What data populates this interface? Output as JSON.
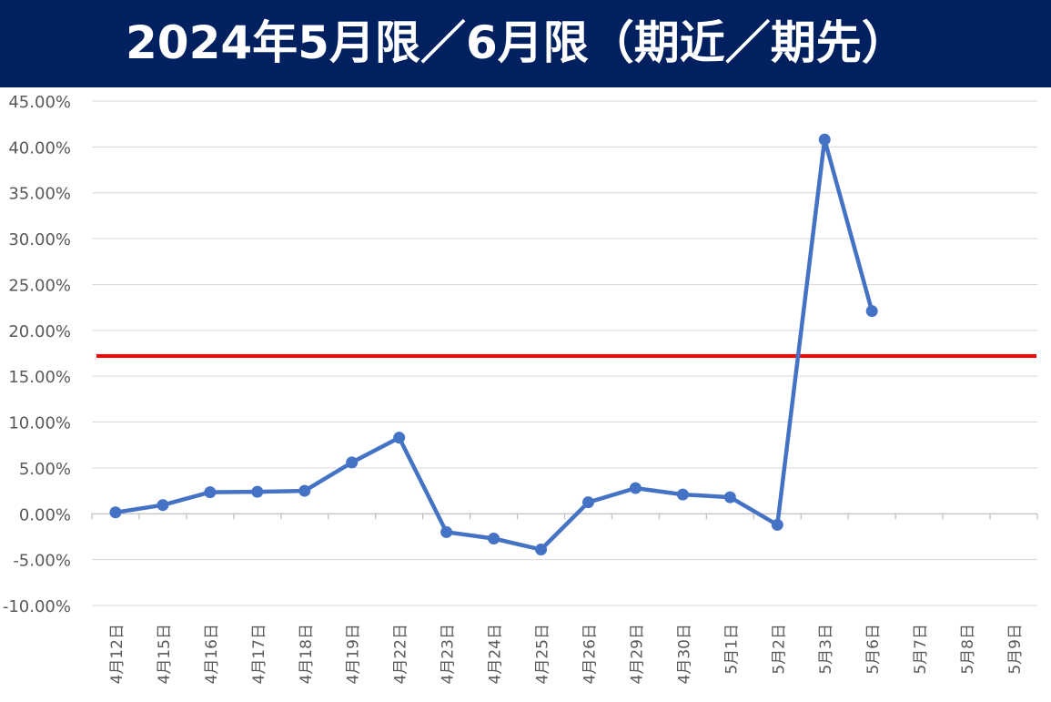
{
  "chart_data": {
    "type": "line",
    "title": "2024年5月限／6月限（期近／期先）",
    "xlabel": "",
    "ylabel": "",
    "ylim": [
      -0.1,
      0.45
    ],
    "ytick_step": 0.05,
    "categories": [
      "4月12日",
      "4月15日",
      "4月16日",
      "4月17日",
      "4月18日",
      "4月19日",
      "4月22日",
      "4月23日",
      "4月24日",
      "4月25日",
      "4月26日",
      "4月29日",
      "4月30日",
      "5月1日",
      "5月2日",
      "5月3日",
      "5月6日",
      "5月7日",
      "5月8日",
      "5月9日"
    ],
    "series": [
      {
        "values": [
          0.0015,
          0.0095,
          0.0235,
          0.024,
          0.025,
          0.056,
          0.083,
          -0.02,
          -0.027,
          -0.039,
          0.0125,
          0.028,
          0.021,
          0.018,
          -0.012,
          0.408,
          0.221,
          null,
          null,
          null
        ],
        "color": "#4472C4"
      }
    ],
    "reference_line": {
      "value": 0.172,
      "color": "#FF0000"
    },
    "grid": true,
    "legend": "none"
  }
}
